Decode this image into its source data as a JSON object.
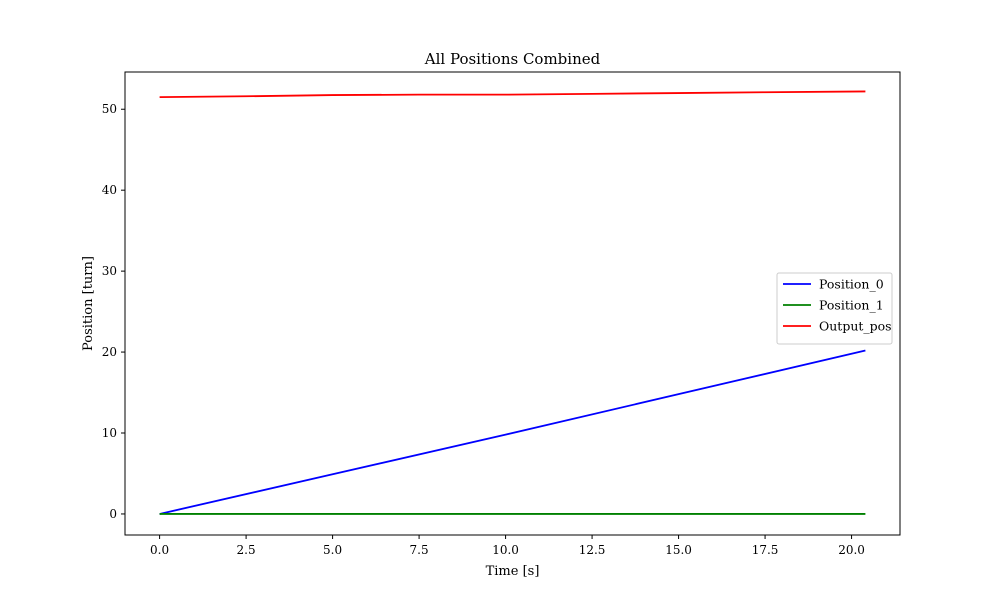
{
  "chart_data": {
    "type": "line",
    "title": "All Positions Combined",
    "xlabel": "Time [s]",
    "ylabel": "Position [turn]",
    "xlim": [
      -1.0,
      21.4
    ],
    "ylim": [
      -2.6,
      54.6
    ],
    "xticks": [
      0.0,
      2.5,
      5.0,
      7.5,
      10.0,
      12.5,
      15.0,
      17.5,
      20.0
    ],
    "xtick_labels": [
      "0.0",
      "2.5",
      "5.0",
      "7.5",
      "10.0",
      "12.5",
      "15.0",
      "17.5",
      "20.0"
    ],
    "yticks": [
      0,
      10,
      20,
      30,
      40,
      50
    ],
    "ytick_labels": [
      "0",
      "10",
      "20",
      "30",
      "40",
      "50"
    ],
    "grid": false,
    "legend_position": "center-right",
    "series": [
      {
        "name": "Position_0",
        "color": "#0000ff",
        "x": [
          0.0,
          5.0,
          10.0,
          15.0,
          20.4
        ],
        "y": [
          0.0,
          4.9,
          9.8,
          14.8,
          20.2
        ]
      },
      {
        "name": "Position_1",
        "color": "#008000",
        "x": [
          0.0,
          5.0,
          10.0,
          15.0,
          20.4
        ],
        "y": [
          0.0,
          0.0,
          0.0,
          0.0,
          0.0
        ]
      },
      {
        "name": "Output_pos",
        "color": "#ff0000",
        "x": [
          0.0,
          2.5,
          5.0,
          7.5,
          10.0,
          12.5,
          15.0,
          17.5,
          20.4
        ],
        "y": [
          51.5,
          51.6,
          51.75,
          51.8,
          51.8,
          51.9,
          52.0,
          52.1,
          52.2
        ]
      }
    ]
  }
}
